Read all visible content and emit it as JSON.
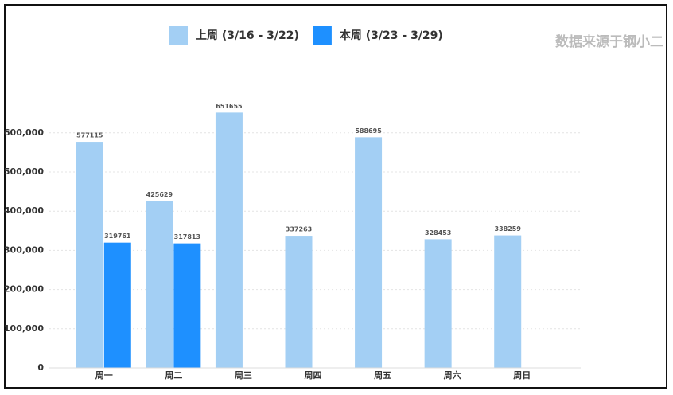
{
  "chart_data": {
    "type": "bar",
    "source": "数据来源于钢小二",
    "categories": [
      "周一",
      "周二",
      "周三",
      "周四",
      "周五",
      "周六",
      "周日"
    ],
    "series": [
      {
        "name": "上周 (3/16 - 3/22)",
        "color": "#a3cff4",
        "values": [
          577115,
          425629,
          651655,
          337263,
          588695,
          328453,
          338259
        ]
      },
      {
        "name": "本周 (3/23 - 3/29)",
        "color": "#1e90ff",
        "values": [
          319761,
          317813,
          null,
          null,
          null,
          null,
          null
        ]
      }
    ],
    "ylim": [
      0,
      700000
    ],
    "yticks": [
      0,
      {
        "value": 100000,
        "label": "100,000"
      },
      {
        "value": 200000,
        "label": "200,000"
      },
      {
        "value": 300000,
        "label": "300,000"
      },
      {
        "value": 400000,
        "label": "400,000"
      },
      {
        "value": 500000,
        "label": "500,000"
      },
      {
        "value": 600000,
        "label": "600,000"
      }
    ],
    "grid": true,
    "legend": "top"
  }
}
